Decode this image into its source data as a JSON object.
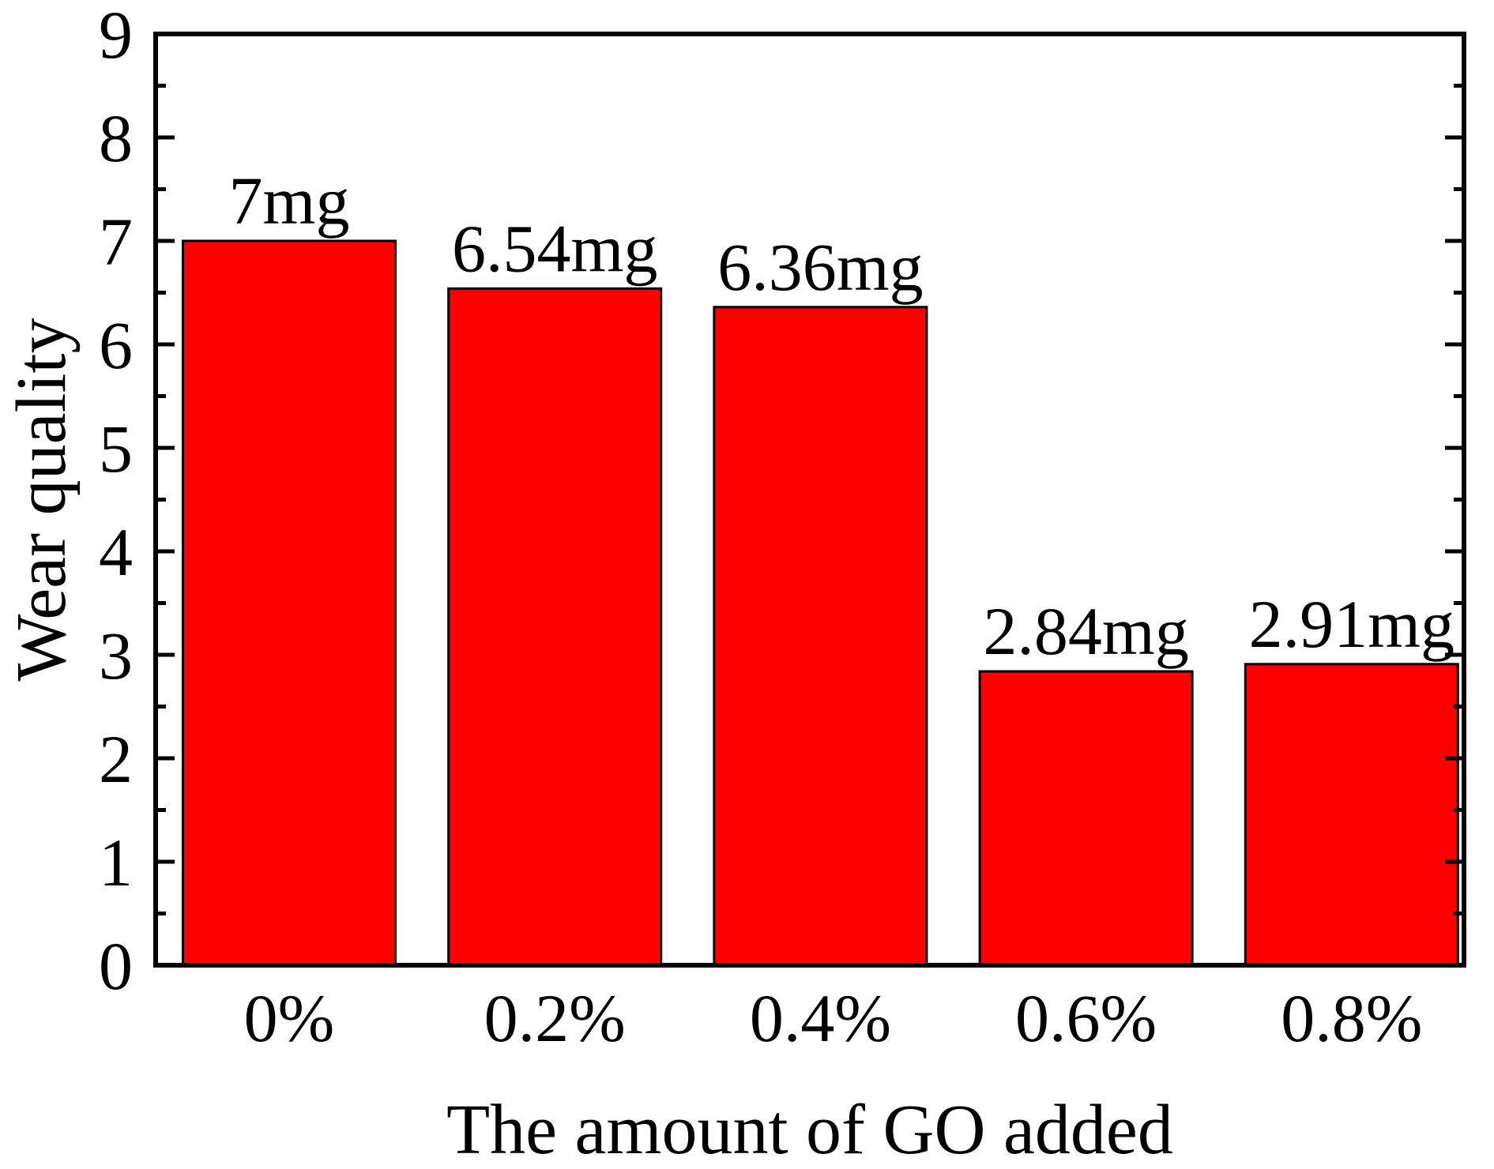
{
  "chart_data": {
    "type": "bar",
    "title": "",
    "xlabel": "The amount of GO added",
    "ylabel": "Wear quality",
    "categories": [
      "0%",
      "0.2%",
      "0.4%",
      "0.6%",
      "0.8%"
    ],
    "values": [
      7,
      6.54,
      6.36,
      2.84,
      2.91
    ],
    "data_labels": [
      "7mg",
      "6.54mg",
      "6.36mg",
      "2.84mg",
      "2.91mg"
    ],
    "ylim": [
      0,
      9
    ],
    "yticks": [
      0,
      1,
      2,
      3,
      4,
      5,
      6,
      7,
      8,
      9
    ],
    "grid": false,
    "legend": "none",
    "colors": {
      "bar_fill": "#ff0000",
      "bar_stroke": "#000000",
      "axis": "#000000",
      "background": "#ffffff"
    }
  }
}
